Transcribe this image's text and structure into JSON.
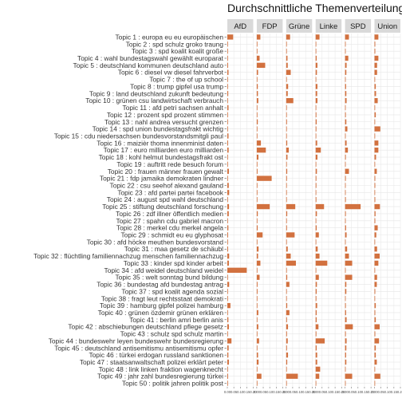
{
  "chart_data": {
    "type": "bar",
    "orientation": "horizontal",
    "faceted": true,
    "title": "Durchschnittliche Themenverteilung",
    "bar_color": "#d2713f",
    "strip_color": "#d9d9d9",
    "grid_color": "#e6e6e6",
    "facets": [
      "AfD",
      "FDP",
      "Grüne",
      "Linke",
      "SPD",
      "Union"
    ],
    "categories": [
      "Topic 1 : europa eu eu europäischen",
      "Topic 2 : spd schulz groko traung",
      "Topic 3 : spd koalit koalit große",
      "Topic 4 : wahl bundestagswahl gewählt europarat",
      "Topic 5 : deutschland kommunen deutschland auto",
      "Topic 6 : diesel vw diesel fahrverbot",
      "Topic 7 : the of up school",
      "Topic 8 : trump gipfel usa trump",
      "Topic 9 : land deutschland zukunft bedeutung",
      "Topic 10 : grünen csu landwirtschaft verbrauch",
      "Topic 11 : afd petri sachsen anhalt",
      "Topic 12 : prozent spd prozent stimmen",
      "Topic 13 : nahl andrea versucht grenzen",
      "Topic 14 : spd union bundestagsfrakt wichtig",
      "Topic 15 : cdu niedersachsen bundesvorstandsmitgli paul",
      "Topic 16 : maizièr thoma innenminist daten",
      "Topic 17 : euro milliarden euro milliarden",
      "Topic 18 : kohl helmut bundestagsfrakt ost",
      "Topic 19 : auftritt rede besuch forum",
      "Topic 20 : frauen männer frauen gewalt",
      "Topic 21 : fdp jamaika demokraten lindner",
      "Topic 22 : csu seehof alexand gauland",
      "Topic 23 : afd partei partei facebook",
      "Topic 24 : august spd wahl deutschland",
      "Topic 25 : stiftung deutschland forschung",
      "Topic 26 : zdf illner öffentlich medien",
      "Topic 27 : spahn cdu gabriel macron",
      "Topic 28 : merkel cdu merkel angela",
      "Topic 29 : schmidt eu eu glyphosat",
      "Topic 30 : afd höcke meuthen bundesvorstand",
      "Topic 31 : maa gesetz de schäubl",
      "Topic 32 : flüchtling familiennachzug menschen familiennachzug",
      "Topic 33 : kinder spd kinder arbeit",
      "Topic 34 : afd weidel deutschland weidel",
      "Topic 35 : welt sonntag bund bildung",
      "Topic 36 : bundestag afd bundestag antrag",
      "Topic 37 : spd koalit agenda sozial",
      "Topic 38 : fragt leut rechtsstaat demokrati",
      "Topic 39 : hamburg gipfel polizei hamburg",
      "Topic 40 : grünen özdemir grünen erklären",
      "Topic 41 : berlin amri berlin anis",
      "Topic 42 : abschiebungen deutschland pflege gesetz",
      "Topic 43 : schulz spd schulz martin",
      "Topic 44 : bundeswehr leyen bundeswehr bundesregierung",
      "Topic 45 : deutschland antisemitismu antisemitismu opfer",
      "Topic 46 : türkei erdogan russland sanktionen",
      "Topic 47 : staatsanwaltschaft polizei erklärt peter",
      "Topic 48 : link linken fraktion wagenknecht",
      "Topic 49 : jahr zahl bundesregierung türkei",
      "Topic 50 : politik jahren politik post"
    ],
    "xlim": [
      0,
      0.2
    ],
    "x_ticks": [
      0,
      0.05,
      0.1,
      0.15,
      0.2
    ],
    "x_tick_labels": [
      "0.00",
      "0.05",
      "0.10",
      "0.15",
      "0.20"
    ],
    "series": [
      {
        "name": "AfD",
        "values": [
          0.045,
          0.003,
          0.003,
          0.004,
          0.006,
          0.009,
          0.001,
          0.005,
          0.007,
          0.005,
          0.009,
          0.003,
          0.004,
          0.004,
          0.009,
          0.006,
          0.01,
          0.003,
          0.003,
          0.012,
          0.004,
          0.011,
          0.014,
          0.004,
          0.013,
          0.011,
          0.004,
          0.008,
          0.006,
          0.005,
          0.006,
          0.014,
          0.012,
          0.15,
          0.005,
          0.014,
          0.003,
          0.004,
          0.024,
          0.004,
          0.008,
          0.012,
          0.004,
          0.032,
          0.01,
          0.008,
          0.012,
          0.004,
          0.006,
          0.004
        ]
      },
      {
        "name": "FDP",
        "values": [
          0.028,
          0.004,
          0.004,
          0.022,
          0.065,
          0.01,
          0.002,
          0.008,
          0.009,
          0.012,
          0.003,
          0.004,
          0.008,
          0.005,
          0.004,
          0.032,
          0.07,
          0.013,
          0.003,
          0.006,
          0.115,
          0.005,
          0.005,
          0.004,
          0.1,
          0.008,
          0.004,
          0.007,
          0.045,
          0.004,
          0.014,
          0.01,
          0.028,
          0.004,
          0.022,
          0.006,
          0.006,
          0.004,
          0.004,
          0.012,
          0.004,
          0.012,
          0.004,
          0.018,
          0.004,
          0.01,
          0.014,
          0.004,
          0.036,
          0.004
        ]
      },
      {
        "name": "Grüne",
        "values": [
          0.03,
          0.003,
          0.003,
          0.01,
          0.012,
          0.035,
          0.002,
          0.015,
          0.012,
          0.055,
          0.003,
          0.004,
          0.006,
          0.005,
          0.004,
          0.008,
          0.02,
          0.01,
          0.004,
          0.008,
          0.006,
          0.004,
          0.004,
          0.004,
          0.07,
          0.008,
          0.003,
          0.006,
          0.065,
          0.003,
          0.012,
          0.035,
          0.075,
          0.004,
          0.008,
          0.025,
          0.004,
          0.004,
          0.008,
          0.025,
          0.006,
          0.014,
          0.006,
          0.012,
          0.006,
          0.014,
          0.008,
          0.004,
          0.09,
          0.004
        ]
      },
      {
        "name": "Linke",
        "values": [
          0.03,
          0.004,
          0.004,
          0.008,
          0.014,
          0.01,
          0.002,
          0.014,
          0.012,
          0.014,
          0.004,
          0.006,
          0.008,
          0.006,
          0.004,
          0.012,
          0.04,
          0.014,
          0.004,
          0.01,
          0.006,
          0.006,
          0.004,
          0.006,
          0.065,
          0.01,
          0.004,
          0.008,
          0.025,
          0.004,
          0.016,
          0.03,
          0.09,
          0.004,
          0.025,
          0.01,
          0.008,
          0.006,
          0.012,
          0.008,
          0.008,
          0.022,
          0.006,
          0.07,
          0.008,
          0.012,
          0.012,
          0.035,
          0.028,
          0.004
        ]
      },
      {
        "name": "SPD",
        "values": [
          0.03,
          0.004,
          0.004,
          0.025,
          0.012,
          0.01,
          0.002,
          0.008,
          0.01,
          0.012,
          0.003,
          0.006,
          0.01,
          0.018,
          0.004,
          0.012,
          0.022,
          0.006,
          0.004,
          0.03,
          0.006,
          0.004,
          0.004,
          0.006,
          0.12,
          0.006,
          0.005,
          0.008,
          0.012,
          0.004,
          0.016,
          0.03,
          0.055,
          0.004,
          0.055,
          0.01,
          0.01,
          0.004,
          0.006,
          0.008,
          0.012,
          0.06,
          0.006,
          0.012,
          0.01,
          0.008,
          0.01,
          0.004,
          0.055,
          0.004
        ]
      },
      {
        "name": "Union",
        "values": [
          0.03,
          0.006,
          0.006,
          0.03,
          0.02,
          0.02,
          0.002,
          0.01,
          0.012,
          0.025,
          0.003,
          0.01,
          0.005,
          0.045,
          0.004,
          0.03,
          0.03,
          0.012,
          0.004,
          0.018,
          0.006,
          0.006,
          0.004,
          0.006,
          0.042,
          0.008,
          0.006,
          0.025,
          0.014,
          0.004,
          0.02,
          0.04,
          0.03,
          0.004,
          0.02,
          0.018,
          0.006,
          0.004,
          0.01,
          0.006,
          0.01,
          0.04,
          0.006,
          0.035,
          0.01,
          0.01,
          0.018,
          0.004,
          0.045,
          0.004
        ]
      }
    ]
  }
}
